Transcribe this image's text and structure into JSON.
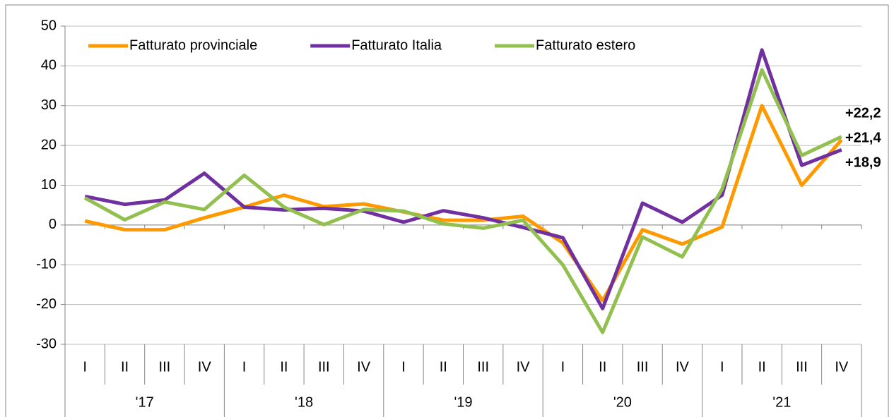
{
  "chart_data": {
    "type": "line",
    "categories": [
      "I",
      "II",
      "III",
      "IV",
      "I",
      "II",
      "III",
      "IV",
      "I",
      "II",
      "III",
      "IV",
      "I",
      "II",
      "III",
      "IV",
      "I",
      "II",
      "III",
      "IV"
    ],
    "years": [
      "'17",
      "'18",
      "'19",
      "'20",
      "'21"
    ],
    "series": [
      {
        "name": "Fatturato provinciale",
        "color": "#ff9900",
        "values": [
          1.0,
          -1.2,
          -1.2,
          1.8,
          4.5,
          7.5,
          4.6,
          5.3,
          3.3,
          1.2,
          1.2,
          2.2,
          -4.5,
          -19,
          -1.2,
          -4.8,
          -0.5,
          30,
          10,
          21.4
        ],
        "value_labels": [
          null,
          null,
          null,
          null,
          null,
          null,
          null,
          null,
          null,
          null,
          null,
          null,
          null,
          null,
          null,
          null,
          null,
          null,
          null,
          "+21,4"
        ]
      },
      {
        "name": "Fatturato Italia",
        "color": "#7030a0",
        "values": [
          7.2,
          5.2,
          6.3,
          13,
          4.5,
          3.8,
          4.2,
          3.5,
          0.7,
          3.6,
          1.8,
          -0.6,
          -3.2,
          -21,
          5.5,
          0.7,
          7.5,
          44,
          15,
          18.9
        ],
        "value_labels": [
          null,
          null,
          null,
          null,
          null,
          null,
          null,
          null,
          null,
          null,
          null,
          null,
          null,
          null,
          null,
          null,
          null,
          null,
          null,
          "+18,9"
        ]
      },
      {
        "name": "Fatturato estero",
        "color": "#92c050",
        "values": [
          6.8,
          1.3,
          5.8,
          3.9,
          12.5,
          4.5,
          0.1,
          3.9,
          3.5,
          0.3,
          -0.8,
          1.2,
          -10,
          -27,
          -3,
          -8,
          9,
          39,
          17.5,
          22.2
        ],
        "value_labels": [
          null,
          null,
          null,
          null,
          null,
          null,
          null,
          null,
          null,
          null,
          null,
          null,
          null,
          null,
          null,
          null,
          null,
          null,
          null,
          "+22,2"
        ]
      }
    ],
    "ylim": [
      -30,
      50
    ],
    "yticks": [
      -30,
      -20,
      -10,
      0,
      10,
      20,
      30,
      40,
      50
    ],
    "grid": true
  }
}
